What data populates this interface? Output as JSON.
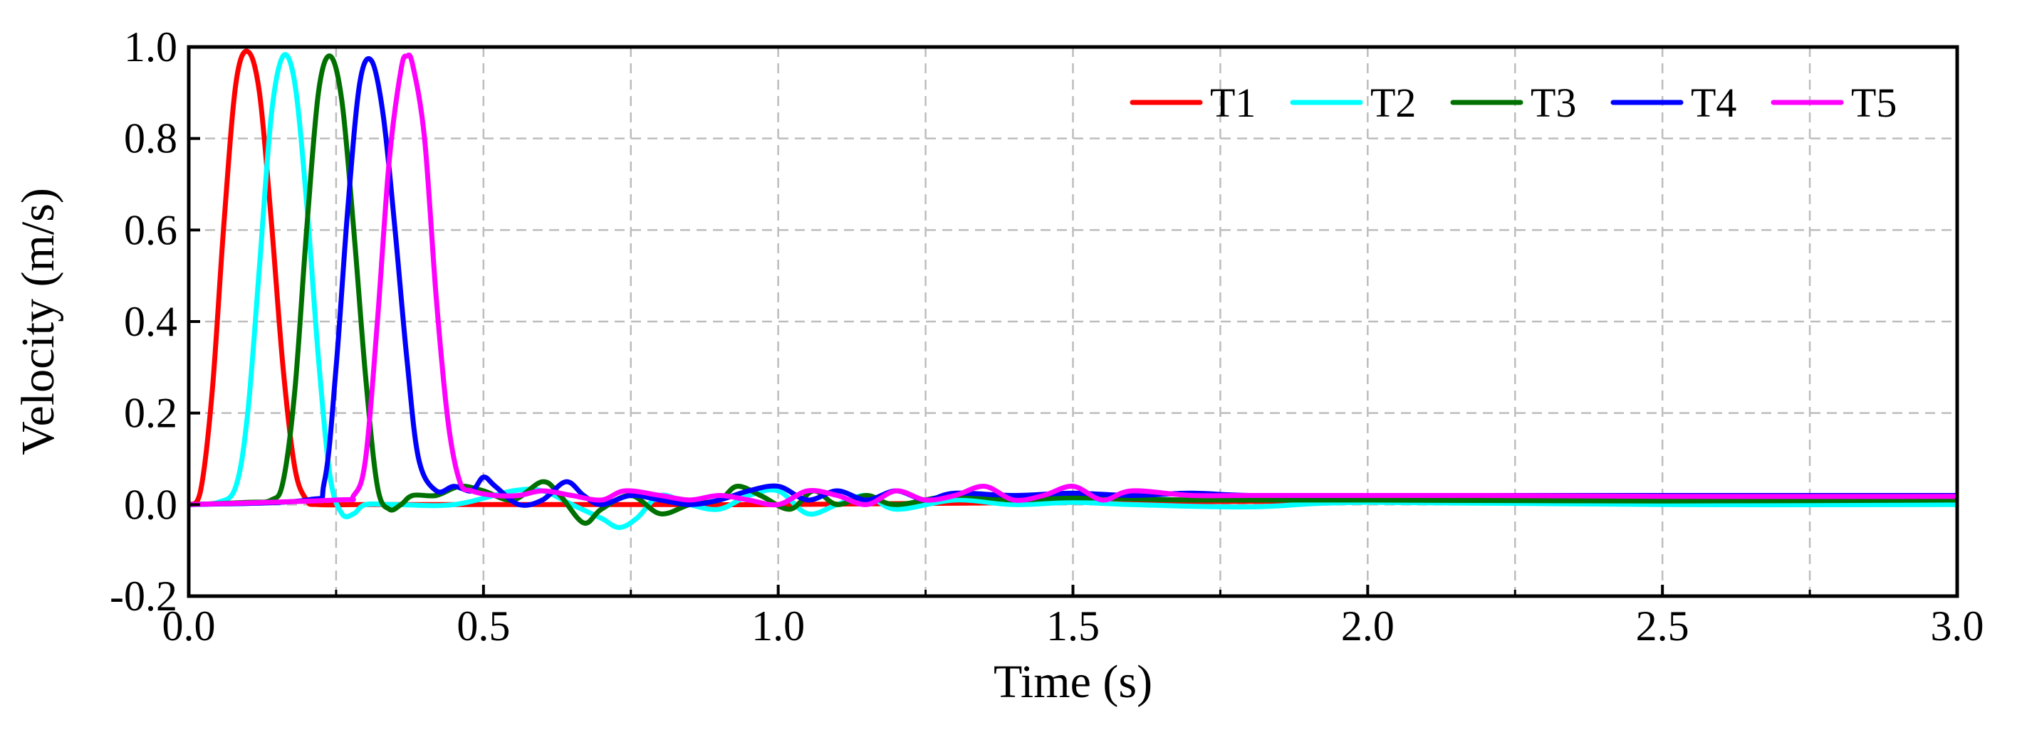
{
  "chart_data": {
    "type": "line",
    "title": "",
    "xlabel": "Time (s)",
    "ylabel": "Velocity (m/s)",
    "xlim": [
      0.0,
      3.0
    ],
    "ylim": [
      -0.2,
      1.0
    ],
    "grid": true,
    "legend_position": "top-right",
    "x_ticks": [
      0.0,
      0.5,
      1.0,
      1.5,
      2.0,
      2.5,
      3.0
    ],
    "x_tick_labels": [
      "0.0",
      "0.5",
      "1.0",
      "1.5",
      "2.0",
      "2.5",
      "3.0"
    ],
    "x_minor_ticks": [
      0.25,
      0.75,
      1.25,
      1.75,
      2.25,
      2.75
    ],
    "y_ticks": [
      -0.2,
      0.0,
      0.2,
      0.4,
      0.6,
      0.8,
      1.0
    ],
    "y_tick_labels": [
      "-0.2",
      "0.0",
      "0.2",
      "0.4",
      "0.6",
      "0.8",
      "1.0"
    ],
    "series": [
      {
        "name": "T1",
        "color": "#ff0000",
        "points": [
          [
            0.0,
            0.0
          ],
          [
            0.02,
            0.03
          ],
          [
            0.04,
            0.25
          ],
          [
            0.06,
            0.62
          ],
          [
            0.08,
            0.92
          ],
          [
            0.1,
            0.99
          ],
          [
            0.12,
            0.9
          ],
          [
            0.14,
            0.62
          ],
          [
            0.16,
            0.3
          ],
          [
            0.18,
            0.08
          ],
          [
            0.2,
            0.01
          ],
          [
            0.22,
            0.0
          ],
          [
            0.3,
            0.0
          ],
          [
            0.5,
            0.0
          ],
          [
            0.6,
            0.0
          ],
          [
            0.8,
            0.0
          ],
          [
            1.0,
            0.0
          ],
          [
            1.5,
            0.005
          ],
          [
            2.0,
            0.008
          ],
          [
            2.5,
            0.01
          ],
          [
            3.0,
            0.012
          ]
        ]
      },
      {
        "name": "T2",
        "color": "#00ffff",
        "points": [
          [
            0.0,
            0.0
          ],
          [
            0.05,
            0.005
          ],
          [
            0.08,
            0.04
          ],
          [
            0.1,
            0.2
          ],
          [
            0.12,
            0.52
          ],
          [
            0.14,
            0.85
          ],
          [
            0.16,
            0.98
          ],
          [
            0.18,
            0.92
          ],
          [
            0.2,
            0.66
          ],
          [
            0.22,
            0.32
          ],
          [
            0.24,
            0.06
          ],
          [
            0.26,
            -0.02
          ],
          [
            0.28,
            -0.02
          ],
          [
            0.3,
            0.0
          ],
          [
            0.35,
            0.0
          ],
          [
            0.45,
            0.0
          ],
          [
            0.55,
            0.03
          ],
          [
            0.6,
            0.03
          ],
          [
            0.65,
            0.0
          ],
          [
            0.7,
            -0.03
          ],
          [
            0.73,
            -0.05
          ],
          [
            0.76,
            -0.03
          ],
          [
            0.8,
            0.02
          ],
          [
            0.85,
            0.0
          ],
          [
            0.9,
            -0.01
          ],
          [
            0.95,
            0.02
          ],
          [
            1.0,
            0.03
          ],
          [
            1.05,
            -0.02
          ],
          [
            1.1,
            0.0
          ],
          [
            1.15,
            0.02
          ],
          [
            1.2,
            -0.01
          ],
          [
            1.3,
            0.01
          ],
          [
            1.4,
            0.0
          ],
          [
            1.5,
            0.005
          ],
          [
            1.6,
            0.0
          ],
          [
            1.8,
            -0.005
          ],
          [
            2.0,
            0.005
          ],
          [
            2.5,
            0.0
          ],
          [
            3.0,
            0.0
          ]
        ]
      },
      {
        "name": "T3",
        "color": "#007000",
        "points": [
          [
            0.0,
            0.0
          ],
          [
            0.1,
            0.005
          ],
          [
            0.14,
            0.01
          ],
          [
            0.16,
            0.05
          ],
          [
            0.18,
            0.25
          ],
          [
            0.2,
            0.6
          ],
          [
            0.22,
            0.9
          ],
          [
            0.24,
            0.98
          ],
          [
            0.26,
            0.88
          ],
          [
            0.28,
            0.6
          ],
          [
            0.3,
            0.28
          ],
          [
            0.32,
            0.04
          ],
          [
            0.34,
            -0.01
          ],
          [
            0.36,
            0.0
          ],
          [
            0.38,
            0.02
          ],
          [
            0.42,
            0.02
          ],
          [
            0.46,
            0.04
          ],
          [
            0.5,
            0.03
          ],
          [
            0.55,
            0.01
          ],
          [
            0.6,
            0.05
          ],
          [
            0.63,
            0.02
          ],
          [
            0.67,
            -0.04
          ],
          [
            0.7,
            -0.01
          ],
          [
            0.75,
            0.02
          ],
          [
            0.8,
            -0.02
          ],
          [
            0.85,
            0.0
          ],
          [
            0.9,
            0.01
          ],
          [
            0.93,
            0.04
          ],
          [
            0.97,
            0.02
          ],
          [
            1.02,
            -0.01
          ],
          [
            1.06,
            0.03
          ],
          [
            1.1,
            0.0
          ],
          [
            1.15,
            0.02
          ],
          [
            1.2,
            0.0
          ],
          [
            1.3,
            0.02
          ],
          [
            1.4,
            0.01
          ],
          [
            1.5,
            0.015
          ],
          [
            1.7,
            0.01
          ],
          [
            2.0,
            0.01
          ],
          [
            2.5,
            0.008
          ],
          [
            3.0,
            0.01
          ]
        ]
      },
      {
        "name": "T4",
        "color": "#0000ff",
        "points": [
          [
            0.0,
            0.0
          ],
          [
            0.2,
            0.01
          ],
          [
            0.23,
            0.05
          ],
          [
            0.25,
            0.3
          ],
          [
            0.27,
            0.65
          ],
          [
            0.29,
            0.92
          ],
          [
            0.31,
            0.97
          ],
          [
            0.33,
            0.85
          ],
          [
            0.35,
            0.6
          ],
          [
            0.37,
            0.32
          ],
          [
            0.39,
            0.1
          ],
          [
            0.42,
            0.03
          ],
          [
            0.45,
            0.04
          ],
          [
            0.48,
            0.03
          ],
          [
            0.5,
            0.06
          ],
          [
            0.52,
            0.04
          ],
          [
            0.56,
            0.0
          ],
          [
            0.6,
            0.01
          ],
          [
            0.64,
            0.05
          ],
          [
            0.67,
            0.02
          ],
          [
            0.7,
            0.0
          ],
          [
            0.75,
            0.02
          ],
          [
            0.8,
            0.01
          ],
          [
            0.85,
            0.0
          ],
          [
            0.9,
            0.01
          ],
          [
            0.95,
            0.03
          ],
          [
            1.0,
            0.04
          ],
          [
            1.05,
            0.01
          ],
          [
            1.1,
            0.03
          ],
          [
            1.15,
            0.01
          ],
          [
            1.2,
            0.03
          ],
          [
            1.25,
            0.01
          ],
          [
            1.3,
            0.025
          ],
          [
            1.4,
            0.02
          ],
          [
            1.5,
            0.025
          ],
          [
            1.6,
            0.02
          ],
          [
            1.7,
            0.025
          ],
          [
            1.8,
            0.02
          ],
          [
            2.0,
            0.02
          ],
          [
            2.2,
            0.02
          ],
          [
            2.5,
            0.02
          ],
          [
            3.0,
            0.02
          ]
        ]
      },
      {
        "name": "T5",
        "color": "#ff00ff",
        "points": [
          [
            0.0,
            0.0
          ],
          [
            0.25,
            0.01
          ],
          [
            0.28,
            0.02
          ],
          [
            0.3,
            0.1
          ],
          [
            0.32,
            0.4
          ],
          [
            0.34,
            0.75
          ],
          [
            0.36,
            0.95
          ],
          [
            0.37,
            0.98
          ],
          [
            0.38,
            0.96
          ],
          [
            0.4,
            0.8
          ],
          [
            0.42,
            0.45
          ],
          [
            0.44,
            0.18
          ],
          [
            0.46,
            0.05
          ],
          [
            0.48,
            0.03
          ],
          [
            0.52,
            0.02
          ],
          [
            0.56,
            0.02
          ],
          [
            0.6,
            0.03
          ],
          [
            0.65,
            0.02
          ],
          [
            0.7,
            0.01
          ],
          [
            0.74,
            0.03
          ],
          [
            0.8,
            0.02
          ],
          [
            0.85,
            0.01
          ],
          [
            0.9,
            0.02
          ],
          [
            0.95,
            0.01
          ],
          [
            1.0,
            0.0
          ],
          [
            1.05,
            0.03
          ],
          [
            1.1,
            0.02
          ],
          [
            1.15,
            0.0
          ],
          [
            1.2,
            0.03
          ],
          [
            1.25,
            0.01
          ],
          [
            1.3,
            0.02
          ],
          [
            1.35,
            0.04
          ],
          [
            1.4,
            0.01
          ],
          [
            1.45,
            0.02
          ],
          [
            1.5,
            0.04
          ],
          [
            1.55,
            0.01
          ],
          [
            1.6,
            0.03
          ],
          [
            1.7,
            0.02
          ],
          [
            1.8,
            0.02
          ],
          [
            2.0,
            0.02
          ],
          [
            2.2,
            0.02
          ],
          [
            2.5,
            0.018
          ],
          [
            3.0,
            0.018
          ]
        ]
      }
    ]
  }
}
